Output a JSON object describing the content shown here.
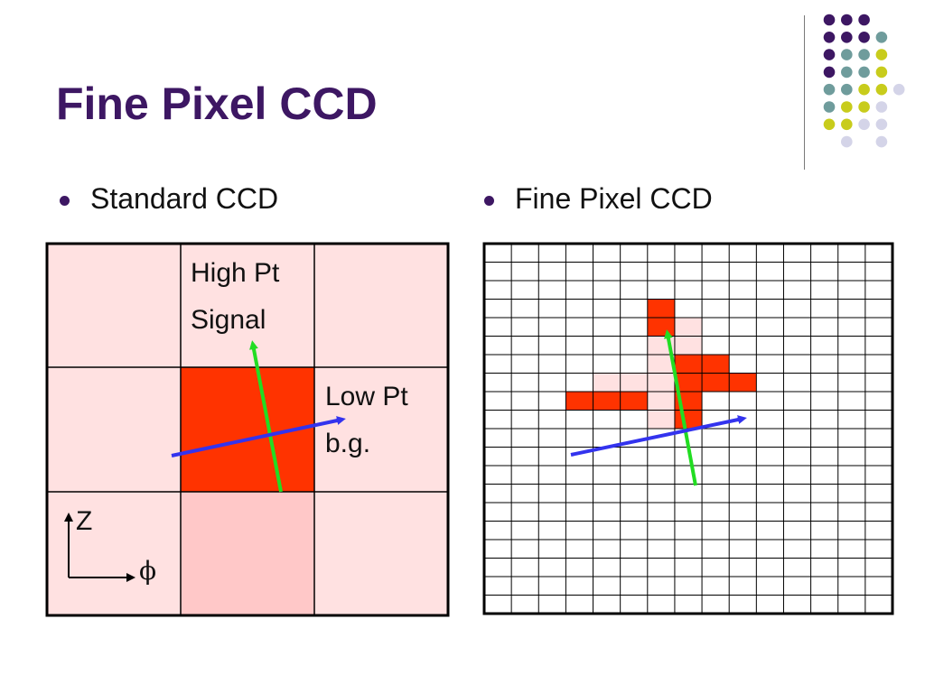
{
  "slide": {
    "title": "Fine Pixel CCD",
    "bullets": [
      "Standard CCD",
      "Fine Pixel CCD"
    ]
  },
  "colors": {
    "title": "#3d1763",
    "hit_strong": "#ff3300",
    "hit_medium": "#ffc8c8",
    "hit_light": "#ffe1e1",
    "signal_track": "#22dd22",
    "background_track": "#3333ee",
    "decor_purple": "#3d1763",
    "decor_teal": "#6f9c9c",
    "decor_yellow": "#c8cc1c",
    "decor_lavender": "#d4d4e8"
  },
  "standard_ccd": {
    "labels": {
      "signal_line1": "High Pt",
      "signal_line2": "Signal",
      "bg_line1": "Low Pt",
      "bg_line2": "b.g."
    },
    "axes": {
      "vertical": "Z",
      "horizontal": "ϕ"
    },
    "cell_shades": [
      [
        "light",
        "light",
        "light"
      ],
      [
        "light",
        "strong",
        "light"
      ],
      [
        "light",
        "medium",
        "light"
      ]
    ]
  },
  "fine_pixel_ccd": {
    "grid_columns": 15,
    "grid_rows": 20
  }
}
